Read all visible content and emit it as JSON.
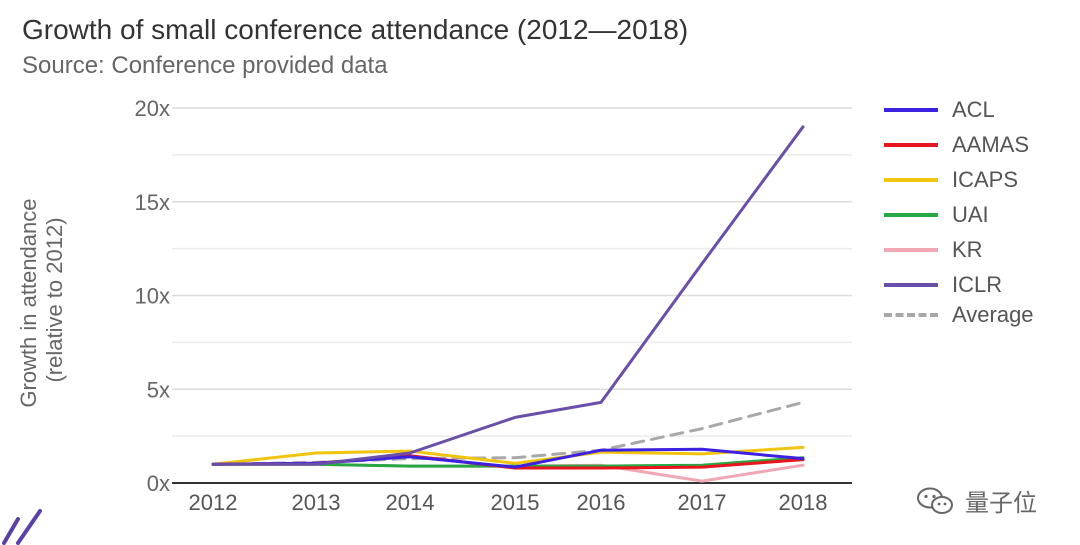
{
  "header": {
    "title": "Growth of small conference attendance (2012—2018)",
    "subtitle": "Source: Conference provided data"
  },
  "watermark": {
    "text": "量子位",
    "icon": "wechat-icon"
  },
  "chart_data": {
    "type": "line",
    "title": "Growth of small conference attendance (2012—2018)",
    "subtitle": "Source: Conference provided data",
    "xlabel": "",
    "ylabel": "Growth in attendance (relative to 2012)",
    "ylabel_lines": [
      "Growth in attendance",
      "(relative to 2012)"
    ],
    "x": [
      "2012",
      "2013",
      "2014",
      "2015",
      "2016",
      "2017",
      "2018"
    ],
    "ylim": [
      0,
      20
    ],
    "yticks": [
      0,
      5,
      10,
      15,
      20
    ],
    "ytick_labels": [
      "0x",
      "5x",
      "10x",
      "15x",
      "20x"
    ],
    "grid": true,
    "legend_position": "right",
    "series": [
      {
        "name": "ACL",
        "color": "#3c22e0",
        "dash": false,
        "values": [
          1.0,
          1.05,
          1.4,
          0.85,
          1.75,
          1.8,
          1.3
        ]
      },
      {
        "name": "AAMAS",
        "color": "#e8141e",
        "dash": false,
        "values": [
          1.0,
          1.05,
          1.45,
          0.8,
          0.8,
          0.85,
          1.25
        ]
      },
      {
        "name": "ICAPS",
        "color": "#f1c40f",
        "dash": false,
        "values": [
          1.0,
          1.6,
          1.7,
          1.05,
          1.65,
          1.55,
          1.9
        ]
      },
      {
        "name": "UAI",
        "color": "#27a844",
        "dash": false,
        "values": [
          1.0,
          1.0,
          0.9,
          0.9,
          0.9,
          0.95,
          1.35
        ]
      },
      {
        "name": "KR",
        "color": "#f0a8b4",
        "dash": false,
        "values": [
          1.0,
          1.0,
          0.9,
          0.9,
          0.95,
          0.1,
          0.95
        ]
      },
      {
        "name": "ICLR",
        "color": "#6a4fa8",
        "dash": false,
        "values": [
          1.0,
          1.0,
          1.6,
          3.5,
          4.3,
          11.7,
          19.0
        ]
      },
      {
        "name": "Average",
        "color": "#a8a8a8",
        "dash": true,
        "values": [
          1.0,
          1.1,
          1.3,
          1.35,
          1.75,
          2.9,
          4.3
        ]
      }
    ]
  }
}
